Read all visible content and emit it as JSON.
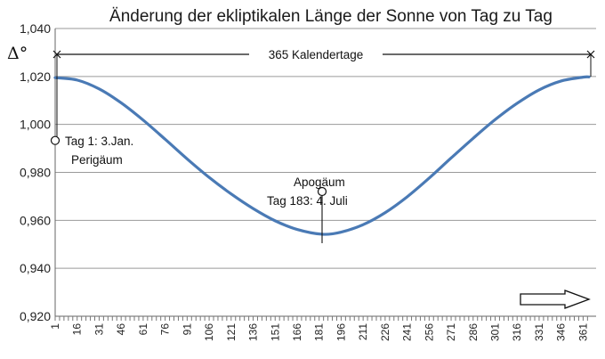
{
  "chart_data": {
    "type": "line",
    "title": "Änderung der ekliptikalen Länge der Sonne von Tag zu Tag",
    "ylabel": "Δ°",
    "xlabel": "",
    "ylim": [
      0.92,
      1.04
    ],
    "yticks": [
      "0,920",
      "0,940",
      "0,960",
      "0,980",
      "1,000",
      "1,020",
      "1,040"
    ],
    "xlim": [
      1,
      365
    ],
    "xticks": [
      1,
      16,
      31,
      46,
      61,
      76,
      91,
      106,
      121,
      136,
      151,
      166,
      181,
      196,
      211,
      226,
      241,
      256,
      271,
      286,
      301,
      316,
      331,
      346,
      361
    ],
    "grid": true,
    "legend": "none",
    "series": [
      {
        "color": "#4a7ab5",
        "x": [
          1,
          16,
          31,
          46,
          61,
          76,
          91,
          106,
          121,
          136,
          151,
          166,
          183,
          196,
          211,
          226,
          241,
          256,
          271,
          286,
          301,
          316,
          331,
          346,
          361,
          365
        ],
        "y": [
          1.0195,
          1.0185,
          1.0148,
          1.009,
          1.0018,
          0.9938,
          0.9856,
          0.9779,
          0.971,
          0.9649,
          0.9598,
          0.9562,
          0.9542,
          0.9551,
          0.9582,
          0.9632,
          0.9698,
          0.9776,
          0.986,
          0.9942,
          1.002,
          1.0088,
          1.0144,
          1.0181,
          1.0197,
          1.0198
        ]
      }
    ],
    "span_label": "365 Kalendertage",
    "annotations": [
      {
        "id": "perihelion",
        "lines": [
          "Tag 1: 3.Jan.",
          "Perigäum"
        ],
        "x": 1,
        "y": 0.9933
      },
      {
        "id": "aphelion",
        "lines": [
          "Apogäum",
          "Tag 183:  4. Juli"
        ],
        "x": 183,
        "y": 0.972
      }
    ]
  }
}
